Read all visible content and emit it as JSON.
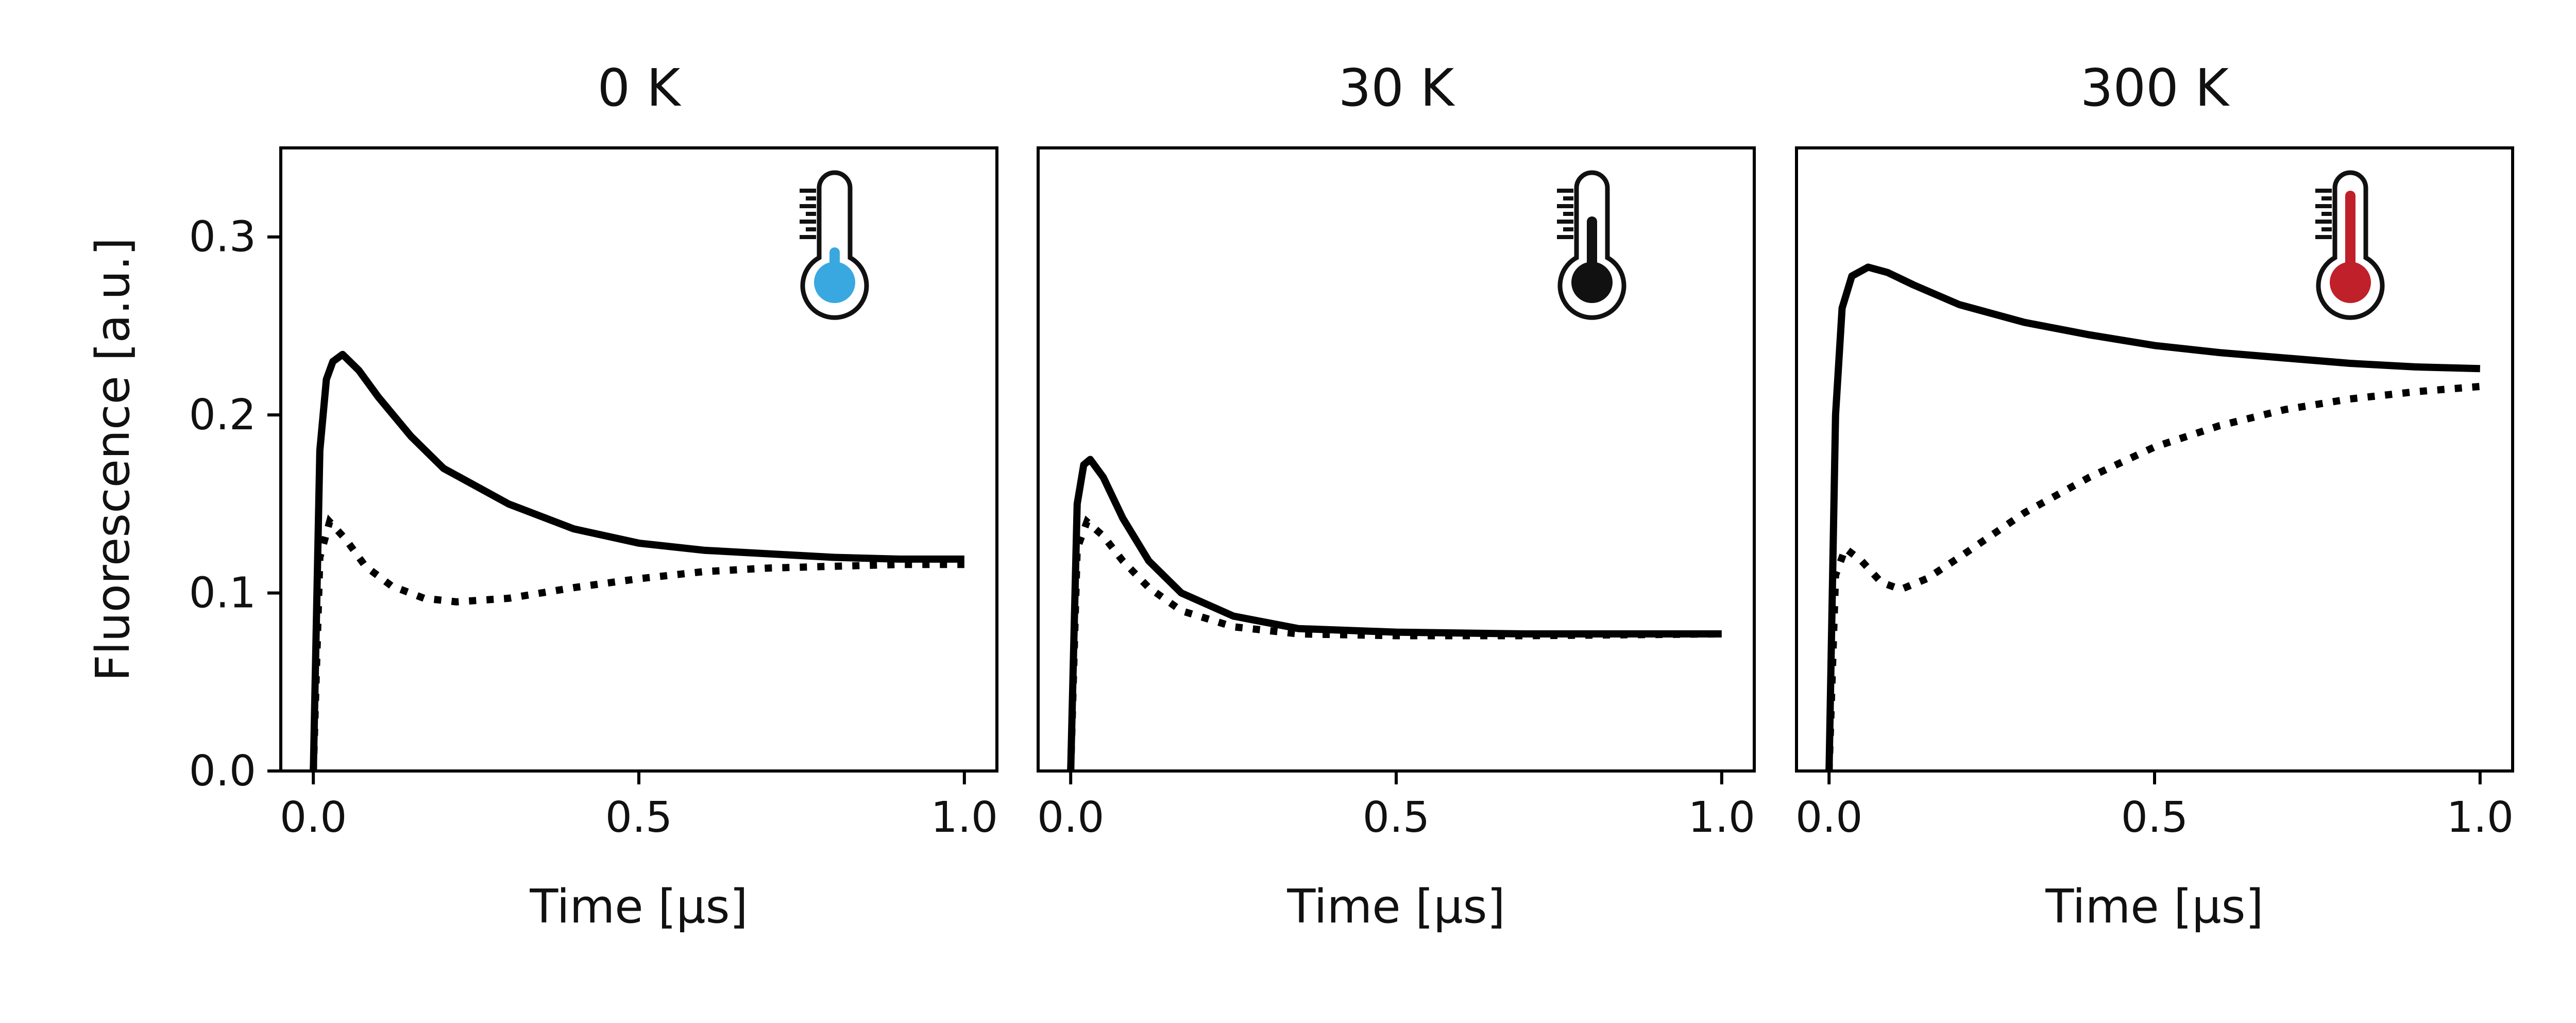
{
  "chart_data": [
    {
      "type": "line",
      "title": "0 K",
      "xlabel": "Time [μs]",
      "ylabel": "Fluorescence [a.u.]",
      "xlim": [
        -0.05,
        1.05
      ],
      "ylim": [
        0.0,
        0.35
      ],
      "xticks": [
        0.0,
        0.5,
        1.0
      ],
      "xtick_labels": [
        "0.0",
        "0.5",
        "1.0"
      ],
      "yticks": [
        0.0,
        0.1,
        0.2,
        0.3
      ],
      "ytick_labels": [
        "0.0",
        "0.1",
        "0.2",
        "0.3"
      ],
      "icon": "thermometer-cold-icon",
      "icon_color": "#3aa8e0",
      "series": [
        {
          "name": "solid",
          "style": "solid",
          "x": [
            0.0,
            0.01,
            0.02,
            0.03,
            0.045,
            0.07,
            0.1,
            0.15,
            0.2,
            0.3,
            0.4,
            0.5,
            0.6,
            0.7,
            0.8,
            0.9,
            1.0
          ],
          "y": [
            0.0,
            0.18,
            0.22,
            0.23,
            0.234,
            0.225,
            0.21,
            0.188,
            0.17,
            0.15,
            0.136,
            0.128,
            0.124,
            0.122,
            0.12,
            0.119,
            0.119
          ]
        },
        {
          "name": "dotted",
          "style": "dotted",
          "x": [
            0.0,
            0.01,
            0.025,
            0.05,
            0.08,
            0.12,
            0.17,
            0.22,
            0.3,
            0.4,
            0.5,
            0.6,
            0.7,
            0.8,
            0.9,
            1.0
          ],
          "y": [
            0.0,
            0.12,
            0.14,
            0.13,
            0.115,
            0.104,
            0.097,
            0.095,
            0.097,
            0.103,
            0.108,
            0.112,
            0.114,
            0.115,
            0.116,
            0.116
          ]
        }
      ]
    },
    {
      "type": "line",
      "title": "30 K",
      "xlabel": "Time [μs]",
      "ylabel": "",
      "xlim": [
        -0.05,
        1.05
      ],
      "ylim": [
        0.0,
        0.35
      ],
      "xticks": [
        0.0,
        0.5,
        1.0
      ],
      "xtick_labels": [
        "0.0",
        "0.5",
        "1.0"
      ],
      "yticks": [],
      "ytick_labels": [],
      "icon": "thermometer-mid-icon",
      "icon_color": "#111111",
      "series": [
        {
          "name": "solid",
          "style": "solid",
          "x": [
            0.0,
            0.01,
            0.02,
            0.03,
            0.05,
            0.08,
            0.12,
            0.17,
            0.25,
            0.35,
            0.5,
            0.7,
            1.0
          ],
          "y": [
            0.0,
            0.15,
            0.172,
            0.175,
            0.165,
            0.142,
            0.118,
            0.1,
            0.087,
            0.08,
            0.078,
            0.077,
            0.077
          ]
        },
        {
          "name": "dotted",
          "style": "dotted",
          "x": [
            0.0,
            0.01,
            0.025,
            0.05,
            0.08,
            0.12,
            0.17,
            0.25,
            0.35,
            0.5,
            0.7,
            1.0
          ],
          "y": [
            0.0,
            0.125,
            0.14,
            0.132,
            0.118,
            0.103,
            0.09,
            0.081,
            0.077,
            0.076,
            0.076,
            0.077
          ]
        }
      ]
    },
    {
      "type": "line",
      "title": "300 K",
      "xlabel": "Time [μs]",
      "ylabel": "",
      "xlim": [
        -0.05,
        1.05
      ],
      "ylim": [
        0.0,
        0.35
      ],
      "xticks": [
        0.0,
        0.5,
        1.0
      ],
      "xtick_labels": [
        "0.0",
        "0.5",
        "1.0"
      ],
      "yticks": [],
      "ytick_labels": [],
      "icon": "thermometer-hot-icon",
      "icon_color": "#c0202a",
      "series": [
        {
          "name": "solid",
          "style": "solid",
          "x": [
            0.0,
            0.01,
            0.02,
            0.035,
            0.06,
            0.09,
            0.13,
            0.2,
            0.3,
            0.4,
            0.5,
            0.6,
            0.7,
            0.8,
            0.9,
            1.0
          ],
          "y": [
            0.0,
            0.2,
            0.26,
            0.278,
            0.283,
            0.28,
            0.273,
            0.262,
            0.252,
            0.245,
            0.239,
            0.235,
            0.232,
            0.229,
            0.227,
            0.226
          ]
        },
        {
          "name": "dotted",
          "style": "dotted",
          "x": [
            0.0,
            0.01,
            0.025,
            0.05,
            0.08,
            0.11,
            0.15,
            0.2,
            0.3,
            0.4,
            0.5,
            0.6,
            0.7,
            0.8,
            0.9,
            1.0
          ],
          "y": [
            0.0,
            0.11,
            0.125,
            0.118,
            0.106,
            0.102,
            0.108,
            0.12,
            0.145,
            0.165,
            0.182,
            0.194,
            0.203,
            0.209,
            0.213,
            0.216
          ]
        }
      ]
    }
  ]
}
